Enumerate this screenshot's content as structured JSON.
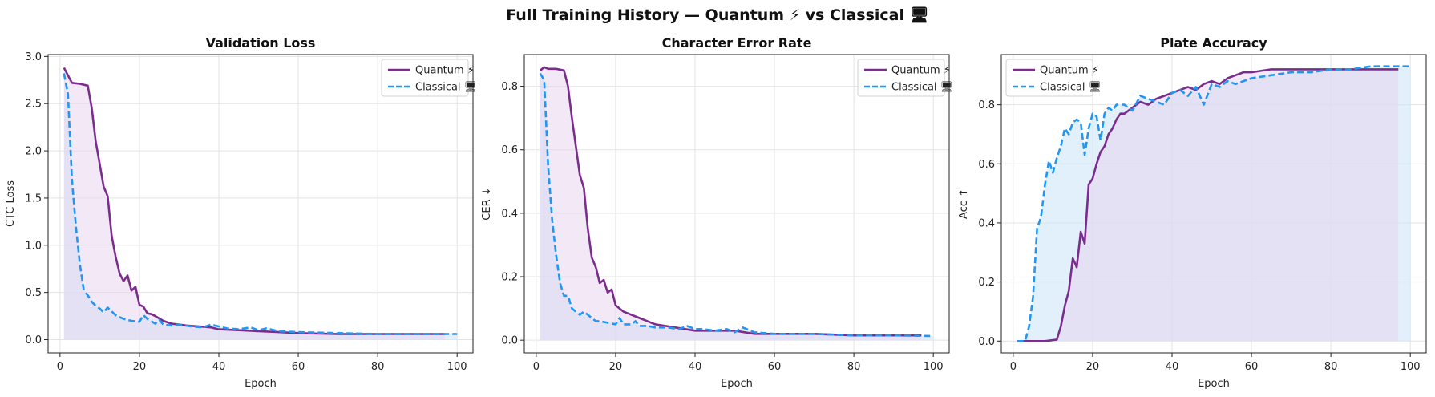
{
  "figure_title": "Full Training History — Quantum ⚡ vs Classical 🖥",
  "colors": {
    "quantum": "#7b2d8e",
    "classical": "#2196f3",
    "quantum_fill": "#e8d5ef",
    "classical_fill": "#cfe6fa"
  },
  "chart_data": [
    {
      "type": "line",
      "title": "Validation Loss",
      "xlabel": "Epoch",
      "ylabel": "CTC Loss",
      "xlim": [
        -3,
        104
      ],
      "ylim": [
        -0.14,
        3.02
      ],
      "xticks": [
        0,
        20,
        40,
        60,
        80,
        100
      ],
      "yticks": [
        0.0,
        0.5,
        1.0,
        1.5,
        2.0,
        2.5,
        3.0
      ],
      "ytick_labels": [
        "0.0",
        "0.5",
        "1.0",
        "1.5",
        "2.0",
        "2.5",
        "3.0"
      ],
      "grid": true,
      "legend": "top-right",
      "series": [
        {
          "name": "Quantum ⚡",
          "style": "solid",
          "x": [
            1,
            3,
            5,
            7,
            8,
            9,
            10,
            11,
            12,
            13,
            14,
            15,
            16,
            17,
            18,
            19,
            20,
            21,
            22,
            23,
            24,
            26,
            28,
            30,
            32,
            35,
            38,
            40,
            45,
            50,
            55,
            60,
            70,
            80,
            90,
            97
          ],
          "y": [
            2.88,
            2.72,
            2.71,
            2.69,
            2.45,
            2.1,
            1.86,
            1.62,
            1.52,
            1.1,
            0.88,
            0.7,
            0.62,
            0.68,
            0.52,
            0.56,
            0.37,
            0.35,
            0.28,
            0.27,
            0.25,
            0.2,
            0.17,
            0.16,
            0.15,
            0.14,
            0.13,
            0.11,
            0.1,
            0.09,
            0.08,
            0.07,
            0.06,
            0.06,
            0.06,
            0.06
          ]
        },
        {
          "name": "Classical 🖥",
          "style": "dashed",
          "x": [
            1,
            2,
            3,
            4,
            5,
            6,
            7,
            8,
            9,
            10,
            11,
            12,
            13,
            14,
            15,
            16,
            18,
            20,
            21,
            22,
            24,
            25,
            26,
            28,
            30,
            33,
            36,
            38,
            40,
            42,
            45,
            48,
            50,
            52,
            55,
            60,
            70,
            80,
            90,
            100
          ],
          "y": [
            2.82,
            2.6,
            1.7,
            1.2,
            0.8,
            0.52,
            0.47,
            0.4,
            0.36,
            0.33,
            0.29,
            0.34,
            0.3,
            0.26,
            0.24,
            0.22,
            0.2,
            0.19,
            0.26,
            0.22,
            0.17,
            0.21,
            0.16,
            0.15,
            0.16,
            0.14,
            0.13,
            0.16,
            0.14,
            0.12,
            0.11,
            0.13,
            0.1,
            0.12,
            0.09,
            0.08,
            0.07,
            0.06,
            0.06,
            0.06
          ]
        }
      ]
    },
    {
      "type": "line",
      "title": "Character Error Rate",
      "xlabel": "Epoch",
      "ylabel": "CER ↓",
      "xlim": [
        -3,
        104
      ],
      "ylim": [
        -0.04,
        0.9
      ],
      "xticks": [
        0,
        20,
        40,
        60,
        80,
        100
      ],
      "yticks": [
        0.0,
        0.2,
        0.4,
        0.6,
        0.8
      ],
      "ytick_labels": [
        "0.0",
        "0.2",
        "0.4",
        "0.6",
        "0.8"
      ],
      "grid": true,
      "legend": "top-right",
      "series": [
        {
          "name": "Quantum ⚡",
          "style": "solid",
          "x": [
            1,
            2,
            3,
            5,
            7,
            8,
            9,
            10,
            11,
            12,
            13,
            14,
            15,
            16,
            17,
            18,
            19,
            20,
            22,
            24,
            26,
            28,
            30,
            35,
            40,
            45,
            50,
            55,
            60,
            70,
            80,
            90,
            97
          ],
          "y": [
            0.85,
            0.86,
            0.855,
            0.855,
            0.85,
            0.8,
            0.7,
            0.61,
            0.52,
            0.48,
            0.35,
            0.26,
            0.23,
            0.18,
            0.19,
            0.15,
            0.16,
            0.11,
            0.09,
            0.08,
            0.07,
            0.06,
            0.05,
            0.04,
            0.03,
            0.03,
            0.03,
            0.02,
            0.02,
            0.02,
            0.015,
            0.015,
            0.015
          ]
        },
        {
          "name": "Classical 🖥",
          "style": "dashed",
          "x": [
            1,
            2,
            3,
            4,
            5,
            6,
            7,
            8,
            9,
            10,
            11,
            12,
            13,
            14,
            15,
            16,
            18,
            20,
            21,
            22,
            24,
            25,
            26,
            28,
            30,
            33,
            36,
            38,
            40,
            42,
            45,
            48,
            50,
            52,
            55,
            60,
            70,
            80,
            90,
            100
          ],
          "y": [
            0.84,
            0.82,
            0.55,
            0.38,
            0.27,
            0.18,
            0.14,
            0.14,
            0.1,
            0.09,
            0.08,
            0.09,
            0.08,
            0.07,
            0.06,
            0.06,
            0.055,
            0.05,
            0.07,
            0.05,
            0.05,
            0.06,
            0.045,
            0.045,
            0.04,
            0.04,
            0.035,
            0.045,
            0.035,
            0.035,
            0.03,
            0.035,
            0.025,
            0.04,
            0.025,
            0.02,
            0.02,
            0.015,
            0.015,
            0.013
          ]
        }
      ]
    },
    {
      "type": "line",
      "title": "Plate Accuracy",
      "xlabel": "Epoch",
      "ylabel": "Acc ↑",
      "xlim": [
        -3,
        104
      ],
      "ylim": [
        -0.04,
        0.97
      ],
      "xticks": [
        0,
        20,
        40,
        60,
        80,
        100
      ],
      "yticks": [
        0.0,
        0.2,
        0.4,
        0.6,
        0.8
      ],
      "ytick_labels": [
        "0.0",
        "0.2",
        "0.4",
        "0.6",
        "0.8"
      ],
      "grid": true,
      "legend": "top-left",
      "series": [
        {
          "name": "Quantum ⚡",
          "style": "solid",
          "x": [
            1,
            5,
            8,
            11,
            12,
            13,
            14,
            15,
            16,
            17,
            18,
            19,
            20,
            21,
            22,
            23,
            24,
            25,
            26,
            27,
            28,
            30,
            32,
            34,
            36,
            38,
            40,
            42,
            44,
            46,
            48,
            50,
            52,
            54,
            56,
            58,
            60,
            65,
            70,
            80,
            90,
            97
          ],
          "y": [
            0.0,
            0.0,
            0.0,
            0.005,
            0.05,
            0.12,
            0.17,
            0.28,
            0.25,
            0.37,
            0.33,
            0.53,
            0.55,
            0.6,
            0.64,
            0.66,
            0.7,
            0.72,
            0.75,
            0.77,
            0.77,
            0.79,
            0.81,
            0.8,
            0.82,
            0.83,
            0.84,
            0.85,
            0.86,
            0.85,
            0.87,
            0.88,
            0.87,
            0.89,
            0.9,
            0.91,
            0.91,
            0.92,
            0.92,
            0.92,
            0.92,
            0.92
          ]
        },
        {
          "name": "Classical 🖥",
          "style": "dashed",
          "x": [
            1,
            3,
            4,
            5,
            6,
            7,
            8,
            9,
            10,
            11,
            12,
            13,
            14,
            15,
            16,
            17,
            18,
            19,
            20,
            21,
            22,
            23,
            24,
            25,
            26,
            28,
            30,
            32,
            34,
            36,
            38,
            40,
            42,
            44,
            46,
            48,
            50,
            52,
            54,
            56,
            58,
            60,
            65,
            70,
            75,
            80,
            85,
            90,
            100
          ],
          "y": [
            0.0,
            0.0,
            0.05,
            0.15,
            0.38,
            0.42,
            0.53,
            0.61,
            0.57,
            0.62,
            0.66,
            0.72,
            0.7,
            0.74,
            0.75,
            0.74,
            0.63,
            0.72,
            0.77,
            0.76,
            0.68,
            0.77,
            0.79,
            0.78,
            0.8,
            0.8,
            0.78,
            0.83,
            0.82,
            0.81,
            0.8,
            0.84,
            0.85,
            0.83,
            0.86,
            0.8,
            0.87,
            0.86,
            0.88,
            0.87,
            0.88,
            0.89,
            0.9,
            0.91,
            0.91,
            0.92,
            0.92,
            0.93,
            0.93
          ]
        }
      ]
    }
  ]
}
